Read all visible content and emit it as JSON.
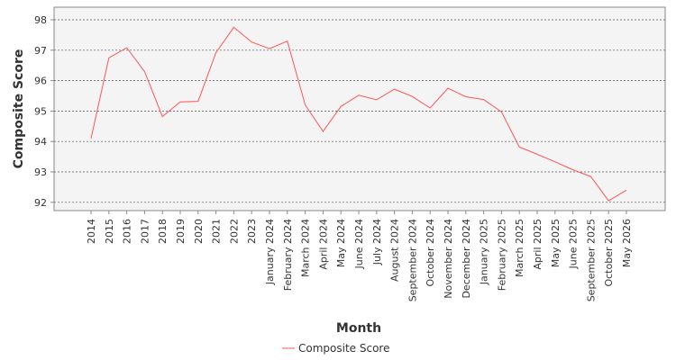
{
  "chart_data": {
    "type": "line",
    "title": "",
    "xlabel": "Month",
    "ylabel": "Composite Score",
    "categories": [
      "2014",
      "2015",
      "2016",
      "2017",
      "2018",
      "2019",
      "2020",
      "2021",
      "2022",
      "2023",
      "January 2024",
      "February 2024",
      "March 2024",
      "April 2024",
      "May 2024",
      "June 2024",
      "July 2024",
      "August 2024",
      "September 2024",
      "October 2024",
      "November 2024",
      "December 2024",
      "January 2025",
      "February 2025",
      "March 2025",
      "April 2025",
      "May 2025",
      "June 2025",
      "September 2025",
      "October 2025",
      "May 2026"
    ],
    "series": [
      {
        "name": "Composite Score",
        "color": "#ff5555",
        "values": [
          94.1,
          96.75,
          97.08,
          96.3,
          94.82,
          95.3,
          95.32,
          96.92,
          97.75,
          97.27,
          97.05,
          97.3,
          95.2,
          94.33,
          95.15,
          95.52,
          95.37,
          95.72,
          95.48,
          95.1,
          95.75,
          95.47,
          95.38,
          94.97,
          93.82,
          93.58,
          93.33,
          93.07,
          92.85,
          92.05,
          92.4
        ]
      }
    ],
    "yticks": [
      92,
      93,
      94,
      95,
      96,
      97,
      98
    ],
    "ylim": [
      91.8,
      98.1
    ],
    "grid": true,
    "legend": "bottom-center",
    "colors": {
      "plot_background": "#f4f4f4",
      "grid": "#555555",
      "axis": "#888888"
    }
  }
}
